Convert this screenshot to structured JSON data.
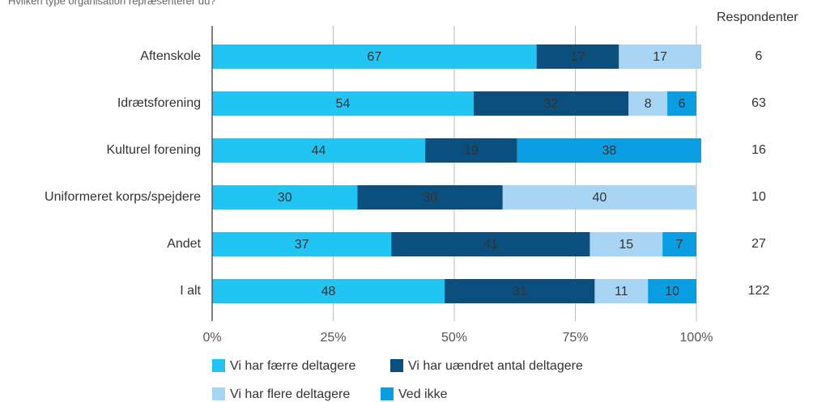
{
  "chart_data": {
    "type": "stacked-bar-horizontal",
    "title": "Hvilken type organisation repræsenterer du?",
    "categories": [
      "Aftenskole",
      "Idrætsforening",
      "Kulturel forening",
      "Uniformeret korps/spejdere",
      "Andet",
      "I alt"
    ],
    "series": [
      {
        "name": "Vi har færre deltagere",
        "color": "#22c4f4",
        "values": [
          67,
          54,
          44,
          30,
          37,
          48
        ]
      },
      {
        "name": "Vi har uændret antal deltagere",
        "color": "#0b4f7f",
        "values": [
          17,
          32,
          19,
          30,
          41,
          31
        ]
      },
      {
        "name": "Vi har flere deltagere",
        "color": "#a9d5f5",
        "values": [
          17,
          8,
          null,
          40,
          15,
          11
        ]
      },
      {
        "name": "Ved ikke",
        "color": "#0a9de2",
        "values": [
          null,
          6,
          38,
          null,
          7,
          10
        ]
      }
    ],
    "xlim": [
      0,
      100
    ],
    "xticks": [
      {
        "value": 0,
        "label": "0%"
      },
      {
        "value": 25,
        "label": "25%"
      },
      {
        "value": 50,
        "label": "50%"
      },
      {
        "value": 75,
        "label": "75%"
      },
      {
        "value": 100,
        "label": "100%"
      }
    ],
    "grid": true,
    "respondents": {
      "label": "Respondenter",
      "values": [
        6,
        63,
        16,
        10,
        27,
        122
      ]
    }
  }
}
